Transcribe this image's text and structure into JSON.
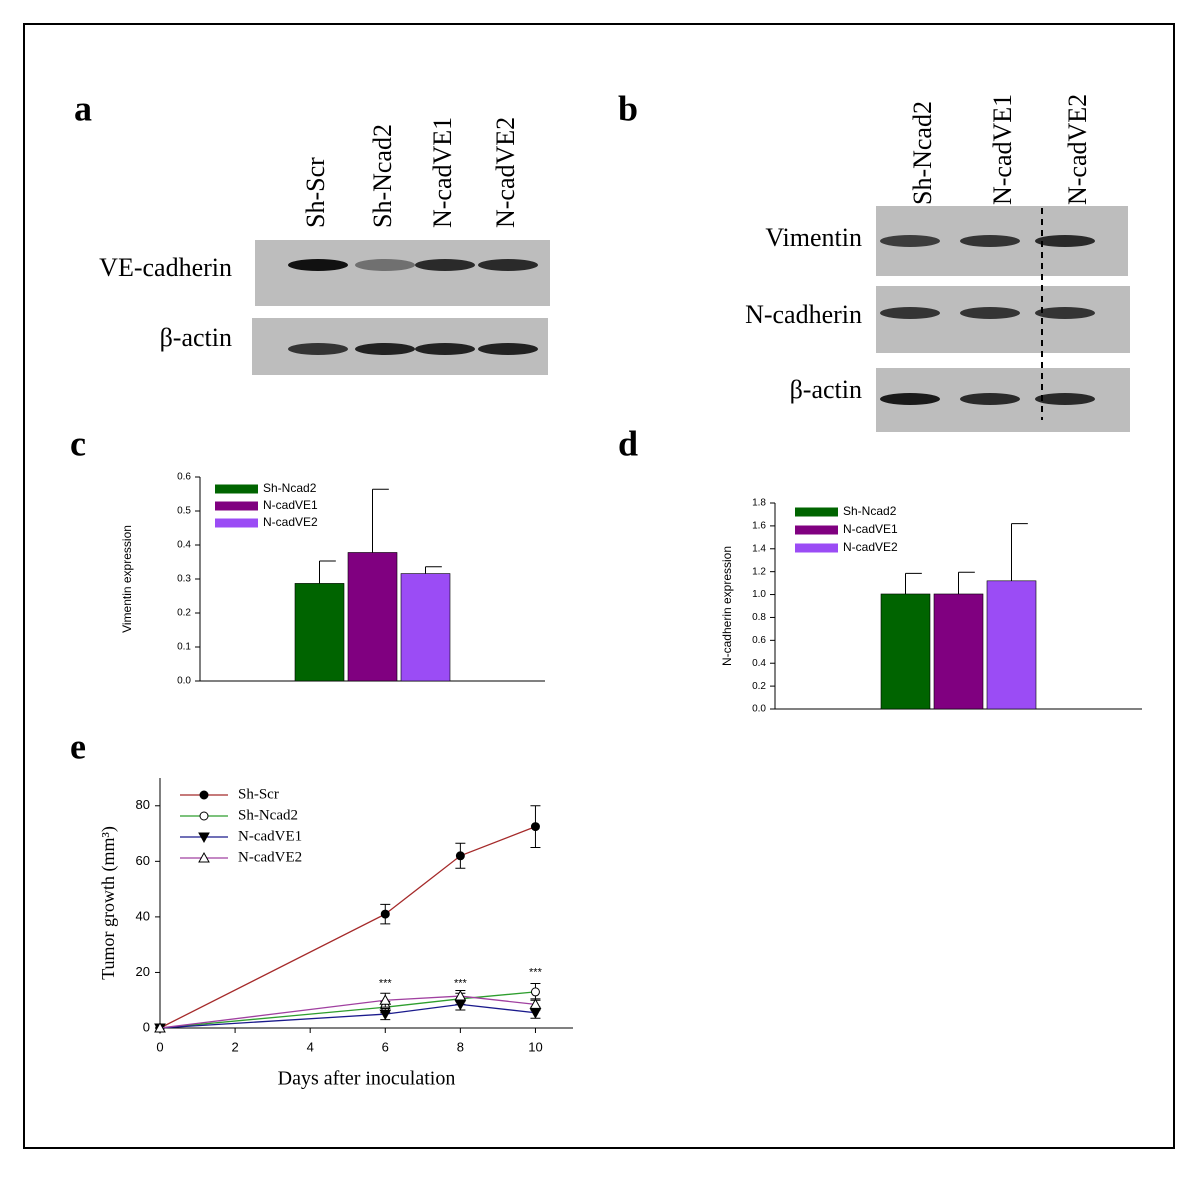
{
  "blots": [
    {
      "label": "a",
      "lanes": [
        "Sh-Scr",
        "Sh-Ncad2",
        "N-cadVE1",
        "N-cadVE2"
      ],
      "rows": [
        "VE-cadherin",
        "β-actin"
      ]
    },
    {
      "label": "b",
      "lanes": [
        "Sh-Ncad2",
        "N-cadVE1",
        "N-cadVE2"
      ],
      "rows": [
        "Vimentin",
        "N-cadherin",
        "β-actin"
      ]
    }
  ],
  "chart_data": [
    {
      "panel": "c",
      "type": "bar",
      "ylabel": "Vimentin expression",
      "categories": [
        null
      ],
      "series": [
        {
          "name": "Sh-Ncad2",
          "color": "#006400",
          "values": [
            0.287
          ],
          "errors": [
            0.066
          ]
        },
        {
          "name": "N-cadVE1",
          "color": "#800080",
          "values": [
            0.378
          ],
          "errors": [
            0.186
          ]
        },
        {
          "name": "N-cadVE2",
          "color": "#9b4cf5",
          "values": [
            0.316
          ],
          "errors": [
            0.02
          ]
        }
      ],
      "ylim": [
        0,
        0.6
      ],
      "yticks": [
        {
          "value": 0,
          "label": "0.0"
        },
        0.1,
        0.2,
        0.3,
        0.4,
        0.5,
        0.6
      ],
      "legend": "upper left"
    },
    {
      "panel": "d",
      "type": "bar",
      "ylabel": "N-cadherin expression",
      "categories": [
        null
      ],
      "series": [
        {
          "name": "Sh-Ncad2",
          "color": "#006400",
          "values": [
            1.005
          ],
          "errors": [
            0.18
          ]
        },
        {
          "name": "N-cadVE1",
          "color": "#800080",
          "values": [
            1.005
          ],
          "errors": [
            0.19
          ]
        },
        {
          "name": "N-cadVE2",
          "color": "#9b4cf5",
          "values": [
            1.12
          ],
          "errors": [
            0.5
          ]
        }
      ],
      "ylim": [
        0,
        1.8
      ],
      "yticks": [
        {
          "value": 0,
          "label": "0.0"
        },
        0.2,
        0.4,
        0.6,
        0.8,
        {
          "value": 1,
          "label": "1.0"
        },
        1.2,
        1.4,
        1.6,
        1.8
      ],
      "legend": "upper left"
    },
    {
      "panel": "e",
      "type": "line",
      "xlabel": "Days after inoculation",
      "ylabel": "Tumor growth (mm³)",
      "x": [
        0,
        6,
        8,
        10
      ],
      "xlim": [
        0,
        11
      ],
      "xticks": [
        0,
        2,
        4,
        6,
        8,
        10
      ],
      "ylim": [
        0,
        90
      ],
      "yticks": [
        0,
        20,
        40,
        60,
        80
      ],
      "series": [
        {
          "name": "Sh-Scr",
          "color": "#a52a2a",
          "marker": "filled-circle",
          "values": [
            0,
            41,
            62,
            72.5
          ],
          "errors": [
            0,
            3.5,
            4.5,
            7.5
          ]
        },
        {
          "name": "Sh-Ncad2",
          "color": "#2e9e2e",
          "marker": "open-circle",
          "values": [
            0,
            7.5,
            10.5,
            13
          ],
          "errors": [
            0,
            2,
            2,
            3
          ]
        },
        {
          "name": "N-cadVE1",
          "color": "#1a1a8c",
          "marker": "filled-triangle-down",
          "values": [
            0,
            5,
            8.5,
            5.5
          ],
          "errors": [
            0,
            2,
            2,
            2
          ]
        },
        {
          "name": "N-cadVE2",
          "color": "#a040a0",
          "marker": "open-triangle-up",
          "values": [
            0,
            10,
            11.5,
            8.5
          ],
          "errors": [
            0,
            2.5,
            2,
            2
          ]
        }
      ],
      "annotations": [
        {
          "text": "***",
          "x": 6,
          "y": 16
        },
        {
          "text": "***",
          "x": 8,
          "y": 16
        },
        {
          "text": "***",
          "x": 10,
          "y": 20
        }
      ],
      "legend": "upper left"
    }
  ]
}
